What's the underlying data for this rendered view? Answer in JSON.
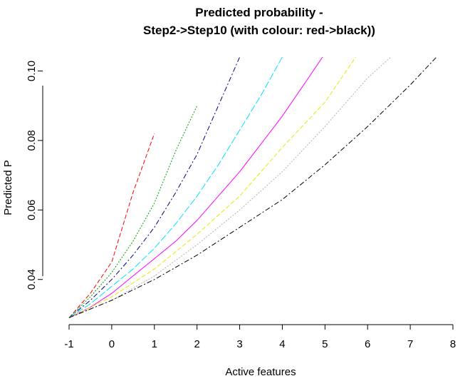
{
  "chart_data": {
    "type": "line",
    "title_line1": "Predicted probability -",
    "title_line2": "Step2->Step10 (with colour: red->black))",
    "xlabel": "Active features",
    "ylabel": "Predicted P",
    "xlim": [
      -1,
      8
    ],
    "ylim": [
      0.027,
      0.104
    ],
    "x_ticks": [
      -1,
      0,
      1,
      2,
      3,
      4,
      5,
      6,
      7,
      8
    ],
    "y_ticks": [
      0.04,
      0.06,
      0.08,
      0.1
    ],
    "y_tick_labels": [
      "0.04",
      "0.06",
      "0.08",
      "0.10"
    ],
    "grid": false,
    "legend": "none",
    "series": [
      {
        "color": "#ff0000",
        "dash": "6,3",
        "x": [
          -1,
          -0.5,
          0,
          0.5,
          1
        ],
        "y": [
          0.029,
          0.036,
          0.045,
          0.065,
          0.082
        ]
      },
      {
        "color": "#00a000",
        "dash": "2,2",
        "x": [
          -1,
          -0.5,
          0,
          0.5,
          1,
          1.5,
          2
        ],
        "y": [
          0.029,
          0.035,
          0.042,
          0.051,
          0.062,
          0.077,
          0.09
        ]
      },
      {
        "color": "#000080",
        "dash": "7,3,2,3",
        "x": [
          -1,
          -0.5,
          0,
          0.5,
          1,
          1.5,
          2,
          2.5,
          3
        ],
        "y": [
          0.029,
          0.034,
          0.04,
          0.047,
          0.055,
          0.065,
          0.076,
          0.09,
          0.104
        ]
      },
      {
        "color": "#00e0ff",
        "dash": "10,3",
        "x": [
          -1,
          -0.5,
          0,
          0.5,
          1,
          1.5,
          2,
          2.5,
          3,
          3.5,
          4
        ],
        "y": [
          0.029,
          0.033,
          0.038,
          0.043,
          0.049,
          0.056,
          0.064,
          0.073,
          0.083,
          0.093,
          0.104
        ]
      },
      {
        "color": "#ff00ff",
        "dash": "none",
        "x": [
          -1,
          -0.5,
          0,
          0.5,
          1,
          1.5,
          2,
          2.5,
          3,
          3.5,
          4,
          4.5,
          5
        ],
        "y": [
          0.029,
          0.032,
          0.036,
          0.041,
          0.046,
          0.051,
          0.057,
          0.064,
          0.071,
          0.079,
          0.087,
          0.096,
          0.105
        ]
      },
      {
        "color": "#e8e800",
        "dash": "6,3",
        "x": [
          -1,
          0,
          1,
          2,
          3,
          4,
          5,
          6
        ],
        "y": [
          0.029,
          0.035,
          0.043,
          0.053,
          0.064,
          0.078,
          0.091,
          0.109
        ]
      },
      {
        "color": "#b0b0b0",
        "dash": "2,2",
        "x": [
          -1,
          0,
          1,
          2,
          3,
          4,
          5,
          6,
          7
        ],
        "y": [
          0.029,
          0.034,
          0.041,
          0.05,
          0.06,
          0.071,
          0.084,
          0.098,
          0.109
        ]
      },
      {
        "color": "#000000",
        "dash": "7,3,2,3",
        "x": [
          -1,
          0,
          1,
          2,
          3,
          4,
          5,
          6,
          7,
          8
        ],
        "y": [
          0.029,
          0.034,
          0.04,
          0.047,
          0.055,
          0.063,
          0.073,
          0.084,
          0.096,
          0.109
        ]
      }
    ]
  }
}
